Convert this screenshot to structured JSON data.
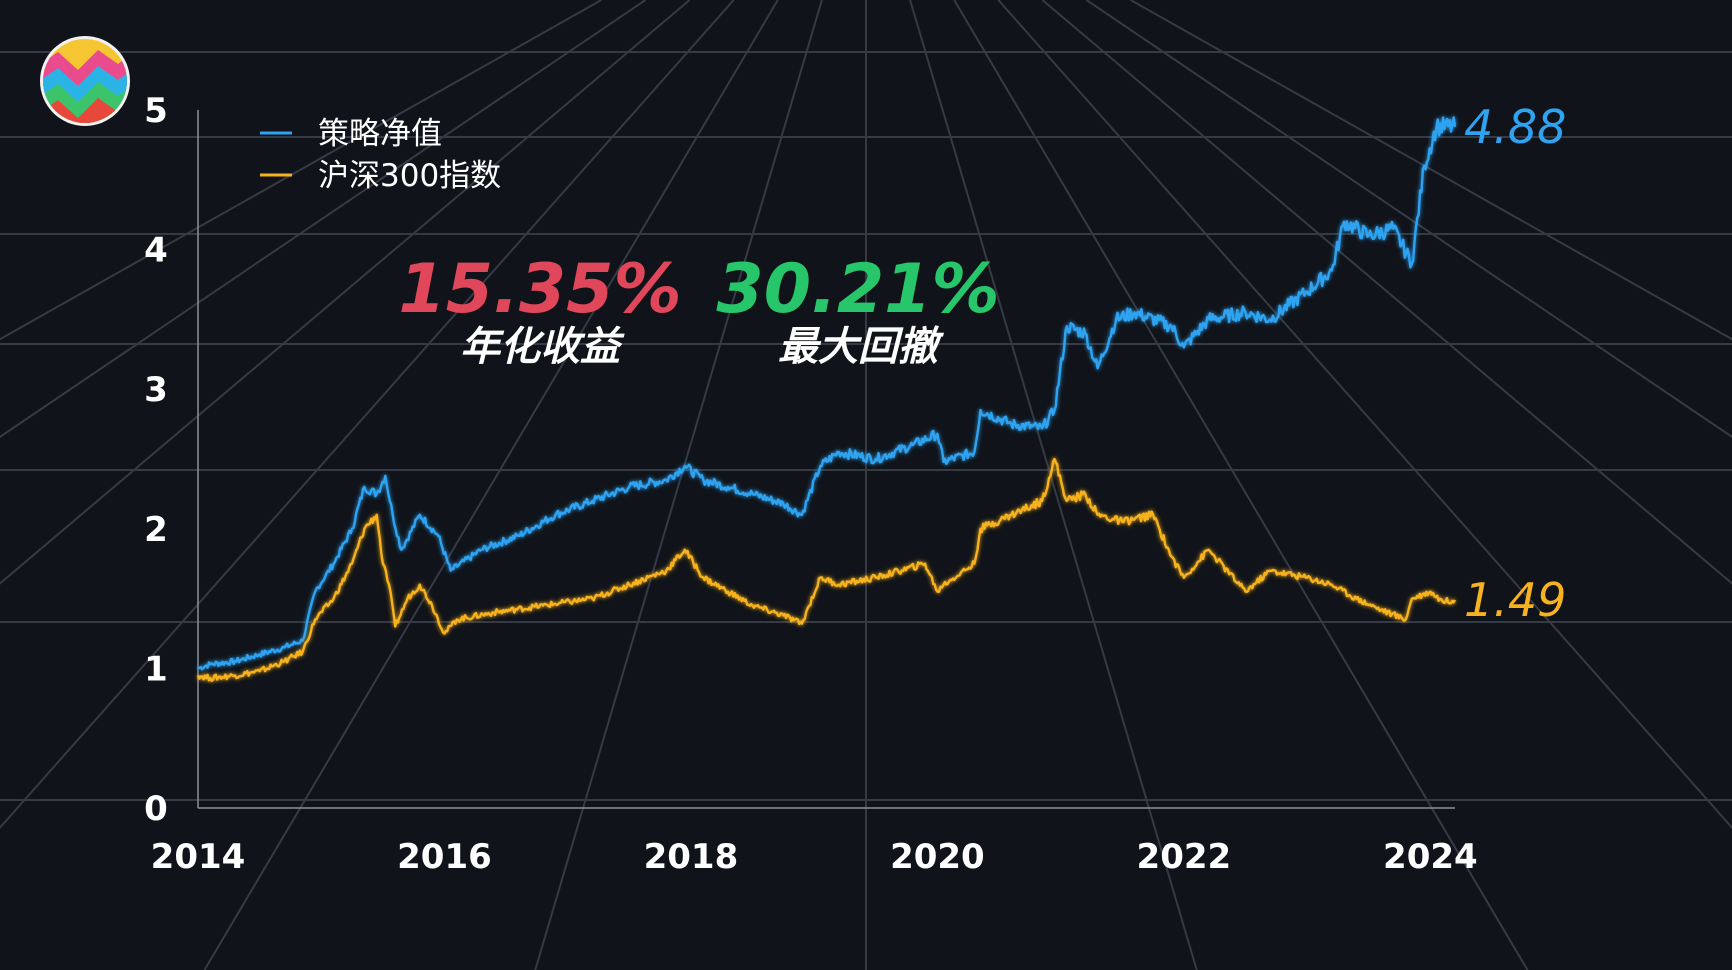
{
  "chart_data": {
    "type": "line",
    "title": "",
    "xlabel": "",
    "ylabel": "",
    "xlim": [
      2014,
      2024.2
    ],
    "ylim": [
      0,
      5
    ],
    "x_ticks": [
      "2014",
      "2016",
      "2018",
      "2020",
      "2022",
      "2024"
    ],
    "y_ticks": [
      "0",
      "1",
      "2",
      "3",
      "4",
      "5"
    ],
    "grid": true,
    "legend_position": "top-left",
    "series": [
      {
        "name": "策略净值",
        "color": "#2ea3f2",
        "end_value": "4.88",
        "x": [
          2014.0,
          2014.1,
          2014.3,
          2014.5,
          2014.7,
          2014.85,
          2014.95,
          2015.1,
          2015.25,
          2015.35,
          2015.45,
          2015.52,
          2015.58,
          2015.65,
          2015.8,
          2015.95,
          2016.05,
          2016.3,
          2016.6,
          2016.9,
          2017.2,
          2017.5,
          2017.8,
          2017.95,
          2018.1,
          2018.3,
          2018.5,
          2018.75,
          2018.9,
          2019.05,
          2019.2,
          2019.5,
          2019.8,
          2020.0,
          2020.05,
          2020.3,
          2020.35,
          2020.6,
          2020.85,
          2020.95,
          2021.05,
          2021.2,
          2021.3,
          2021.45,
          2021.6,
          2021.9,
          2022.0,
          2022.2,
          2022.5,
          2022.7,
          2023.0,
          2023.2,
          2023.3,
          2023.5,
          2023.7,
          2023.85,
          2023.95,
          2024.05,
          2024.2
        ],
        "y": [
          1.0,
          1.03,
          1.05,
          1.1,
          1.15,
          1.2,
          1.55,
          1.75,
          2.0,
          2.3,
          2.25,
          2.38,
          2.1,
          1.85,
          2.1,
          1.95,
          1.7,
          1.85,
          1.95,
          2.1,
          2.2,
          2.3,
          2.35,
          2.45,
          2.35,
          2.3,
          2.25,
          2.18,
          2.1,
          2.45,
          2.55,
          2.5,
          2.6,
          2.68,
          2.48,
          2.55,
          2.85,
          2.75,
          2.72,
          2.85,
          3.45,
          3.4,
          3.15,
          3.5,
          3.55,
          3.45,
          3.3,
          3.5,
          3.55,
          3.5,
          3.7,
          3.85,
          4.2,
          4.1,
          4.15,
          3.9,
          4.6,
          4.88,
          4.88
        ]
      },
      {
        "name": "沪深300指数",
        "color": "#f7b21f",
        "end_value": "1.49",
        "x": [
          2014.0,
          2014.1,
          2014.3,
          2014.5,
          2014.7,
          2014.85,
          2014.95,
          2015.1,
          2015.25,
          2015.35,
          2015.45,
          2015.5,
          2015.55,
          2015.6,
          2015.7,
          2015.8,
          2015.9,
          2016.0,
          2016.1,
          2016.4,
          2016.8,
          2017.2,
          2017.5,
          2017.8,
          2017.95,
          2018.1,
          2018.3,
          2018.5,
          2018.75,
          2018.9,
          2019.05,
          2019.2,
          2019.5,
          2019.9,
          2020.0,
          2020.05,
          2020.3,
          2020.35,
          2020.6,
          2020.85,
          2020.95,
          2021.05,
          2021.2,
          2021.3,
          2021.5,
          2021.75,
          2021.9,
          2022.0,
          2022.2,
          2022.5,
          2022.7,
          2023.0,
          2023.2,
          2023.4,
          2023.6,
          2023.8,
          2023.85,
          2024.0,
          2024.1,
          2024.2
        ],
        "y": [
          0.95,
          0.93,
          0.95,
          0.98,
          1.05,
          1.12,
          1.35,
          1.5,
          1.75,
          2.0,
          2.1,
          1.75,
          1.6,
          1.3,
          1.5,
          1.6,
          1.45,
          1.25,
          1.35,
          1.4,
          1.45,
          1.5,
          1.6,
          1.7,
          1.85,
          1.65,
          1.55,
          1.45,
          1.38,
          1.32,
          1.65,
          1.6,
          1.65,
          1.75,
          1.55,
          1.6,
          1.75,
          2.0,
          2.1,
          2.2,
          2.5,
          2.2,
          2.25,
          2.1,
          2.05,
          2.1,
          1.8,
          1.65,
          1.85,
          1.55,
          1.7,
          1.65,
          1.6,
          1.5,
          1.42,
          1.35,
          1.5,
          1.55,
          1.48,
          1.49
        ]
      }
    ]
  },
  "stats": [
    {
      "value": "15.35%",
      "label": "年化收益",
      "color": "#e0475a"
    },
    {
      "value": "30.21%",
      "label": "最大回撤",
      "color": "#27c66a"
    }
  ],
  "logo": {
    "icon": "rainbow-zigzag-logo-icon"
  }
}
